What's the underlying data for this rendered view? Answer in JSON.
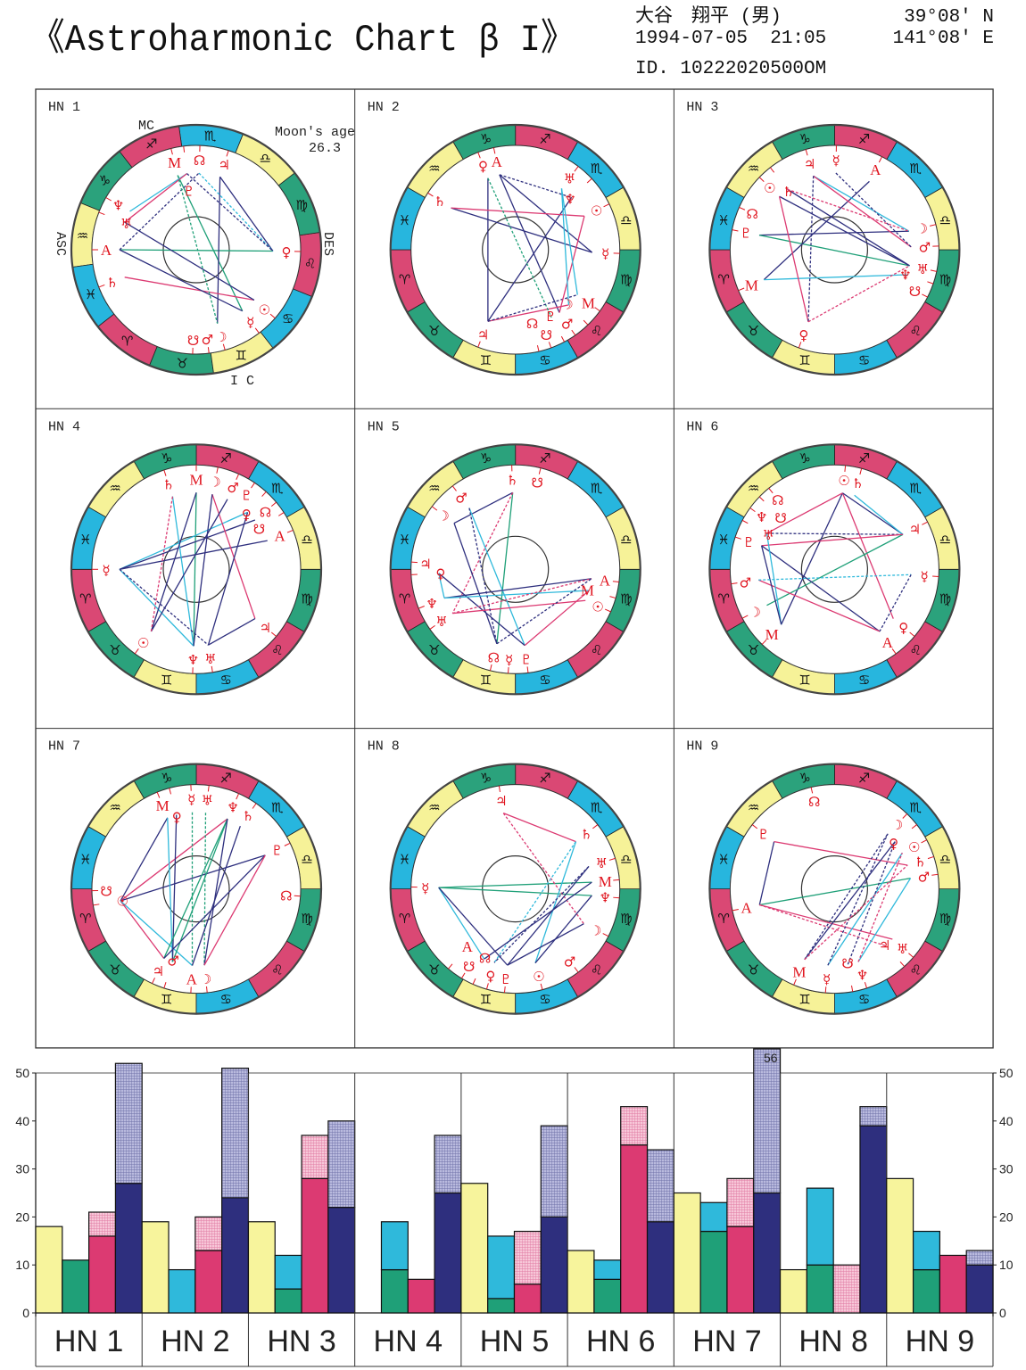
{
  "header": {
    "title": "《Astroharmonic Chart β I》",
    "name": "大谷　翔平 (男)",
    "datetime": "1994-07-05  21:05",
    "id": "ID. 10222020500OM",
    "lat": "39°08′ N",
    "lon": "141°08′ E"
  },
  "colors": {
    "fire": "#da4874",
    "earth": "#2ba27c",
    "air": "#f6f298",
    "water": "#27b6de",
    "planet": "#e0151f",
    "navy": "#2e2f7e",
    "pink": "#dc3a72",
    "cyan": "#2fb9db",
    "green": "#1fa078",
    "yellow_bar": "#f7f49c",
    "pink_hatch": "#f2a6c2",
    "lavender_hatch": "#9d9ecb"
  },
  "zodiac_glyphs": [
    "♈",
    "♉",
    "♊",
    "♋",
    "♌",
    "♍",
    "♎",
    "♏",
    "♐",
    "♑",
    "♒",
    "♓"
  ],
  "planet_glyphs": {
    "sun": "☉",
    "moon": "☽",
    "mercury": "☿",
    "venus": "♀",
    "mars": "♂",
    "jupiter": "♃",
    "saturn": "♄",
    "uranus": "♅",
    "neptune": "♆",
    "pluto": "♇",
    "node": "☊",
    "snode": "☋",
    "asc": "A",
    "mc": "M"
  },
  "hn1_labels": {
    "mc": "MC",
    "ic": "I C",
    "asc": "ASC",
    "des": "DES",
    "moon_age_label": "Moon's age",
    "moon_age": "26.3"
  },
  "wheels": [
    {
      "label": "HN 1",
      "planets": {
        "mc": 246,
        "pluto": 239,
        "node": 230,
        "jupiter": 214,
        "neptune": 292,
        "uranus": 301,
        "asc": 322,
        "saturn": 343,
        "venus": 141,
        "sun": 101,
        "mercury": 89,
        "moon": 68,
        "mars": 59,
        "snode": 50
      },
      "aspects": [
        [
          "mc",
          "mercury",
          "green",
          0
        ],
        [
          "neptune",
          "pluto",
          "cyan",
          0
        ],
        [
          "uranus",
          "pluto",
          "pink",
          0
        ],
        [
          "asc",
          "venus",
          "green",
          0
        ],
        [
          "jupiter",
          "venus",
          "navy",
          0
        ],
        [
          "jupiter",
          "moon",
          "navy",
          0
        ],
        [
          "saturn",
          "sun",
          "pink",
          0
        ],
        [
          "uranus",
          "sun",
          "navy",
          0
        ],
        [
          "asc",
          "mercury",
          "navy",
          0
        ],
        [
          "node",
          "venus",
          "cyan",
          1
        ],
        [
          "pluto",
          "venus",
          "navy",
          1
        ],
        [
          "asc",
          "node",
          "navy",
          1
        ],
        [
          "mc",
          "moon",
          "green",
          1
        ]
      ]
    },
    {
      "label": "HN 2",
      "planets": {
        "venus": 291,
        "asc": 282,
        "saturn": 327,
        "uranus": 233,
        "neptune": 223,
        "sun": 206,
        "mercury": 178,
        "mc": 144,
        "moon": 134,
        "mars": 125,
        "pluto": 118,
        "snode": 110,
        "node": 103,
        "jupiter": 69
      },
      "aspects": [
        [
          "venus",
          "jupiter",
          "navy",
          0
        ],
        [
          "jupiter",
          "neptune",
          "navy",
          0
        ],
        [
          "asc",
          "mercury",
          "navy",
          0
        ],
        [
          "asc",
          "mars",
          "navy",
          0
        ],
        [
          "saturn",
          "mercury",
          "navy",
          0
        ],
        [
          "saturn",
          "sun",
          "pink",
          0
        ],
        [
          "jupiter",
          "moon",
          "pink",
          0
        ],
        [
          "venus",
          "pluto",
          "green",
          1
        ],
        [
          "asc",
          "neptune",
          "navy",
          1
        ],
        [
          "jupiter",
          "mc",
          "navy",
          1
        ],
        [
          "sun",
          "mars",
          "pink",
          0
        ],
        [
          "uranus",
          "mc",
          "cyan",
          0
        ],
        [
          "uranus",
          "moon",
          "cyan",
          0
        ]
      ]
    },
    {
      "label": "HN 3",
      "planets": {
        "jupiter": 286,
        "mercury": 269,
        "asc": 243,
        "sun": 316,
        "saturn": 308,
        "node": 336,
        "pluto": 349,
        "mc": 23,
        "venus": 70,
        "moon": 194,
        "mars": 182,
        "uranus": 168,
        "neptune": 161,
        "snode": 153
      },
      "aspects": [
        [
          "pluto",
          "moon",
          "navy",
          0
        ],
        [
          "pluto",
          "uranus",
          "green",
          0
        ],
        [
          "asc",
          "mc",
          "navy",
          0
        ],
        [
          "mc",
          "neptune",
          "cyan",
          0
        ],
        [
          "saturn",
          "uranus",
          "navy",
          0
        ],
        [
          "sun",
          "uranus",
          "navy",
          0
        ],
        [
          "jupiter",
          "moon",
          "cyan",
          0
        ],
        [
          "jupiter",
          "mars",
          "pink",
          0
        ],
        [
          "sun",
          "venus",
          "pink",
          0
        ],
        [
          "jupiter",
          "venus",
          "navy",
          1
        ],
        [
          "mercury",
          "mars",
          "navy",
          1
        ],
        [
          "venus",
          "uranus",
          "pink",
          1
        ],
        [
          "saturn",
          "moon",
          "pink",
          1
        ]
      ]
    },
    {
      "label": "HN 4",
      "planets": {
        "mc": 270,
        "saturn": 288,
        "moon": 258,
        "mars": 246,
        "pluto": 236,
        "venus": 228,
        "node": 220,
        "snode": 213,
        "asc": 202,
        "mercury": 0,
        "jupiter": 140,
        "sun": 54,
        "neptune": 88,
        "uranus": 99
      },
      "aspects": [
        [
          "mc",
          "neptune",
          "green",
          0
        ],
        [
          "mercury",
          "asc",
          "navy",
          0
        ],
        [
          "mercury",
          "venus",
          "cyan",
          0
        ],
        [
          "mercury",
          "node",
          "navy",
          0
        ],
        [
          "mercury",
          "neptune",
          "cyan",
          0
        ],
        [
          "saturn",
          "neptune",
          "cyan",
          0
        ],
        [
          "jupiter",
          "moon",
          "pink",
          0
        ],
        [
          "jupiter",
          "uranus",
          "navy",
          0
        ],
        [
          "sun",
          "mc",
          "navy",
          0
        ],
        [
          "sun",
          "mars",
          "navy",
          0
        ],
        [
          "sun",
          "saturn",
          "pink",
          1
        ],
        [
          "neptune",
          "moon",
          "navy",
          0
        ],
        [
          "mercury",
          "uranus",
          "navy",
          1
        ],
        [
          "uranus",
          "venus",
          "navy",
          0
        ]
      ]
    },
    {
      "label": "HN 5",
      "planets": {
        "saturn": 272,
        "snode": 256,
        "mars": 307,
        "moon": 323,
        "jupiter": 356,
        "venus": 3,
        "neptune": 22,
        "uranus": 35,
        "node": 76,
        "mercury": 86,
        "pluto": 97,
        "asc": 173,
        "mc": 164,
        "sun": 156
      },
      "aspects": [
        [
          "saturn",
          "node",
          "green",
          0
        ],
        [
          "saturn",
          "moon",
          "navy",
          0
        ],
        [
          "saturn",
          "uranus",
          "pink",
          1
        ],
        [
          "mars",
          "pluto",
          "cyan",
          0
        ],
        [
          "moon",
          "node",
          "navy",
          0
        ],
        [
          "venus",
          "pluto",
          "navy",
          0
        ],
        [
          "venus",
          "neptune",
          "cyan",
          0
        ],
        [
          "neptune",
          "asc",
          "navy",
          0
        ],
        [
          "neptune",
          "mc",
          "cyan",
          0
        ],
        [
          "uranus",
          "sun",
          "pink",
          0
        ],
        [
          "pluto",
          "mc",
          "pink",
          0
        ],
        [
          "uranus",
          "asc",
          "pink",
          1
        ],
        [
          "node",
          "asc",
          "navy",
          1
        ],
        [
          "mars",
          "node",
          "navy",
          1
        ]
      ]
    },
    {
      "label": "HN 6",
      "planets": {
        "sun": 264,
        "saturn": 255,
        "node": 309,
        "snode": 316,
        "neptune": 324,
        "uranus": 332,
        "pluto": 342,
        "jupiter": 207,
        "mercury": 176,
        "venus": 140,
        "asc": 126,
        "mc": 46,
        "moon": 28,
        "mars": 8
      },
      "aspects": [
        [
          "sun",
          "mc",
          "navy",
          0
        ],
        [
          "sun",
          "venus",
          "pink",
          0
        ],
        [
          "sun",
          "jupiter",
          "navy",
          0
        ],
        [
          "sun",
          "uranus",
          "pink",
          0
        ],
        [
          "saturn",
          "jupiter",
          "cyan",
          0
        ],
        [
          "jupiter",
          "moon",
          "green",
          0
        ],
        [
          "uranus",
          "jupiter",
          "navy",
          1
        ],
        [
          "pluto",
          "jupiter",
          "pink",
          0
        ],
        [
          "pluto",
          "asc",
          "navy",
          0
        ],
        [
          "mars",
          "asc",
          "pink",
          0
        ],
        [
          "uranus",
          "mc",
          "cyan",
          0
        ],
        [
          "pluto",
          "mc",
          "navy",
          0
        ],
        [
          "mars",
          "mercury",
          "cyan",
          1
        ],
        [
          "mercury",
          "asc",
          "navy",
          1
        ]
      ]
    },
    {
      "label": "HN 7",
      "planets": {
        "mc": 292,
        "venus": 285,
        "mercury": 273,
        "uranus": 263,
        "neptune": 246,
        "saturn": 235,
        "pluto": 206,
        "node": 176,
        "snode": 1,
        "sun": 9,
        "jupiter": 65,
        "mars": 72,
        "asc": 87,
        "moon": 96
      },
      "aspects": [
        [
          "sun",
          "mc",
          "navy",
          0
        ],
        [
          "sun",
          "neptune",
          "pink",
          0
        ],
        [
          "sun",
          "pluto",
          "navy",
          0
        ],
        [
          "sun",
          "jupiter",
          "pink",
          0
        ],
        [
          "sun",
          "asc",
          "cyan",
          0
        ],
        [
          "mc",
          "mars",
          "cyan",
          0
        ],
        [
          "venus",
          "mars",
          "navy",
          0
        ],
        [
          "mercury",
          "asc",
          "green",
          1
        ],
        [
          "uranus",
          "moon",
          "green",
          1
        ],
        [
          "neptune",
          "jupiter",
          "green",
          0
        ],
        [
          "neptune",
          "mars",
          "green",
          0
        ],
        [
          "neptune",
          "moon",
          "navy",
          0
        ],
        [
          "pluto",
          "jupiter",
          "navy",
          0
        ],
        [
          "pluto",
          "moon",
          "pink",
          0
        ],
        [
          "saturn",
          "asc",
          "navy",
          0
        ]
      ]
    },
    {
      "label": "HN 8",
      "planets": {
        "jupiter": 279,
        "saturn": 218,
        "uranus": 197,
        "mc": 185,
        "neptune": 175,
        "moon": 153,
        "mars": 127,
        "sun": 105,
        "pluto": 84,
        "venus": 74,
        "node": 66,
        "snode": 59,
        "asc": 50,
        "mercury": 359
      },
      "aspects": [
        [
          "mercury",
          "mc",
          "green",
          0
        ],
        [
          "mercury",
          "neptune",
          "green",
          0
        ],
        [
          "mercury",
          "node",
          "cyan",
          0
        ],
        [
          "mercury",
          "pluto",
          "navy",
          0
        ],
        [
          "jupiter",
          "saturn",
          "pink",
          0
        ],
        [
          "jupiter",
          "moon",
          "pink",
          1
        ],
        [
          "saturn",
          "venus",
          "cyan",
          1
        ],
        [
          "saturn",
          "sun",
          "cyan",
          0
        ],
        [
          "uranus",
          "venus",
          "navy",
          1
        ],
        [
          "neptune",
          "sun",
          "navy",
          0
        ],
        [
          "uranus",
          "pluto",
          "navy",
          0
        ],
        [
          "mc",
          "node",
          "navy",
          0
        ],
        [
          "moon",
          "pluto",
          "navy",
          0
        ]
      ]
    },
    {
      "label": "HN 9",
      "planets": {
        "node": 283,
        "pluto": 322,
        "moon": 226,
        "venus": 218,
        "sun": 208,
        "saturn": 198,
        "mars": 188,
        "uranus": 139,
        "jupiter": 132,
        "neptune": 108,
        "snode": 100,
        "mercury": 85,
        "mc": 67,
        "asc": 12
      },
      "aspects": [
        [
          "pluto",
          "asc",
          "navy",
          0
        ],
        [
          "pluto",
          "saturn",
          "pink",
          0
        ],
        [
          "asc",
          "mars",
          "green",
          0
        ],
        [
          "asc",
          "uranus",
          "pink",
          0
        ],
        [
          "asc",
          "jupiter",
          "pink",
          1
        ],
        [
          "mc",
          "moon",
          "navy",
          1
        ],
        [
          "mc",
          "venus",
          "navy",
          0
        ],
        [
          "mercury",
          "sun",
          "cyan",
          0
        ],
        [
          "neptune",
          "mars",
          "cyan",
          0
        ],
        [
          "mercury",
          "moon",
          "navy",
          1
        ],
        [
          "neptune",
          "sun",
          "pink",
          1
        ],
        [
          "snode",
          "venus",
          "navy",
          1
        ],
        [
          "mc",
          "saturn",
          "pink",
          1
        ]
      ]
    }
  ],
  "chart_data": {
    "type": "bar",
    "categories": [
      "HN 1",
      "HN 2",
      "HN 3",
      "HN 4",
      "HN 5",
      "HN 6",
      "HN 7",
      "HN 8",
      "HN 9"
    ],
    "ylim": [
      0,
      50
    ],
    "yticks": [
      "0",
      "10",
      "20",
      "30",
      "40",
      "50"
    ],
    "overflow_label": "56",
    "columns": [
      {
        "segments": [
          {
            "color": "yellow_bar",
            "values": [
              18,
              19,
              19,
              0,
              27,
              13,
              25,
              9,
              28
            ]
          }
        ]
      },
      {
        "segments": [
          {
            "color": "green",
            "values": [
              11,
              0,
              5,
              9,
              3,
              7,
              17,
              10,
              9
            ]
          },
          {
            "color": "cyan",
            "values": [
              0,
              9,
              7,
              10,
              13,
              4,
              6,
              16,
              8
            ]
          }
        ]
      },
      {
        "segments": [
          {
            "color": "pink",
            "values": [
              16,
              13,
              28,
              7,
              6,
              35,
              18,
              0,
              12
            ]
          },
          {
            "color": "pink_hatch",
            "values": [
              5,
              7,
              9,
              0,
              11,
              8,
              10,
              10,
              0
            ]
          }
        ]
      },
      {
        "segments": [
          {
            "color": "navy",
            "values": [
              27,
              24,
              22,
              25,
              20,
              19,
              25,
              39,
              10
            ]
          },
          {
            "color": "lavender_hatch",
            "values": [
              25,
              27,
              18,
              12,
              19,
              15,
              31,
              4,
              3
            ]
          }
        ]
      }
    ]
  }
}
